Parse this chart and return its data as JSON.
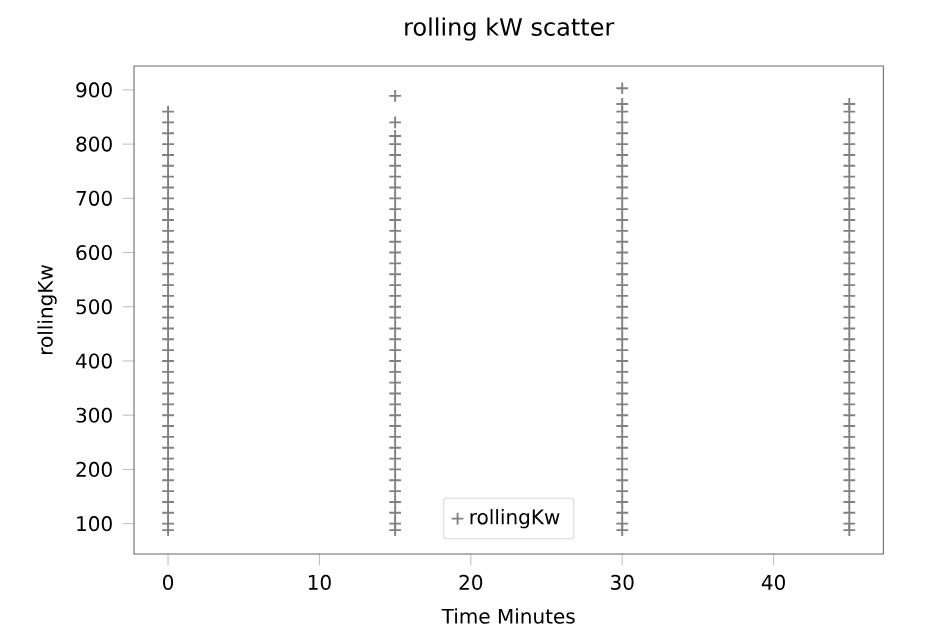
{
  "chart_data": {
    "type": "scatter",
    "title": "rolling kW scatter",
    "xlabel": "Time Minutes",
    "ylabel": "rollingKw",
    "xlim": [
      -2.25,
      47.25
    ],
    "ylim": [
      44,
      944
    ],
    "xticks": [
      0,
      10,
      20,
      30,
      40
    ],
    "yticks": [
      100,
      200,
      300,
      400,
      500,
      600,
      700,
      800,
      900
    ],
    "legend": "bottom",
    "marker": "cross",
    "series": [
      {
        "name": "rollingKw",
        "color": "#808080",
        "x": [
          0,
          0,
          0,
          0,
          0,
          0,
          0,
          0,
          0,
          0,
          0,
          0,
          0,
          0,
          0,
          0,
          0,
          0,
          0,
          0,
          0,
          0,
          0,
          0,
          0,
          0,
          0,
          0,
          0,
          0,
          0,
          0,
          0,
          0,
          0,
          0,
          0,
          0,
          0,
          0,
          15,
          15,
          15,
          15,
          15,
          15,
          15,
          15,
          15,
          15,
          15,
          15,
          15,
          15,
          15,
          15,
          15,
          15,
          15,
          15,
          15,
          15,
          15,
          15,
          15,
          15,
          15,
          15,
          15,
          15,
          15,
          15,
          15,
          15,
          15,
          15,
          15,
          15,
          15,
          15,
          30,
          30,
          30,
          30,
          30,
          30,
          30,
          30,
          30,
          30,
          30,
          30,
          30,
          30,
          30,
          30,
          30,
          30,
          30,
          30,
          30,
          30,
          30,
          30,
          30,
          30,
          30,
          30,
          30,
          30,
          30,
          30,
          30,
          30,
          30,
          30,
          30,
          30,
          30,
          30,
          30,
          30,
          45,
          45,
          45,
          45,
          45,
          45,
          45,
          45,
          45,
          45,
          45,
          45,
          45,
          45,
          45,
          45,
          45,
          45,
          45,
          45,
          45,
          45,
          45,
          45,
          45,
          45,
          45,
          45,
          45,
          45,
          45,
          45,
          45,
          45,
          45,
          45,
          45,
          45,
          45,
          45,
          45
        ],
        "values": [
          88,
          100,
          120,
          140,
          160,
          180,
          200,
          220,
          240,
          260,
          280,
          300,
          320,
          340,
          360,
          380,
          400,
          420,
          440,
          460,
          480,
          500,
          520,
          540,
          560,
          580,
          600,
          620,
          640,
          660,
          680,
          700,
          720,
          740,
          760,
          780,
          800,
          820,
          840,
          860,
          88,
          100,
          120,
          140,
          160,
          180,
          200,
          220,
          240,
          260,
          280,
          300,
          320,
          340,
          360,
          380,
          400,
          420,
          440,
          460,
          480,
          500,
          520,
          540,
          560,
          580,
          600,
          620,
          640,
          660,
          680,
          700,
          720,
          740,
          760,
          780,
          800,
          815,
          840,
          889,
          88,
          100,
          120,
          140,
          160,
          180,
          200,
          220,
          240,
          260,
          280,
          300,
          320,
          340,
          360,
          380,
          400,
          420,
          440,
          460,
          480,
          500,
          520,
          540,
          560,
          580,
          600,
          620,
          640,
          660,
          680,
          700,
          720,
          740,
          760,
          780,
          800,
          820,
          840,
          860,
          874,
          903,
          88,
          100,
          120,
          140,
          160,
          180,
          200,
          220,
          240,
          260,
          280,
          300,
          320,
          340,
          360,
          380,
          400,
          420,
          440,
          460,
          480,
          500,
          520,
          540,
          560,
          580,
          600,
          620,
          640,
          660,
          680,
          700,
          720,
          740,
          760,
          780,
          800,
          820,
          840,
          860,
          874
        ]
      }
    ]
  }
}
